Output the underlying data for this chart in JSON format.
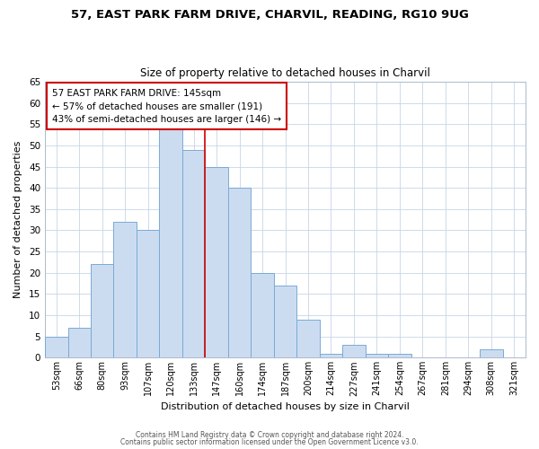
{
  "title": "57, EAST PARK FARM DRIVE, CHARVIL, READING, RG10 9UG",
  "subtitle": "Size of property relative to detached houses in Charvil",
  "xlabel": "Distribution of detached houses by size in Charvil",
  "ylabel": "Number of detached properties",
  "bar_labels": [
    "53sqm",
    "66sqm",
    "80sqm",
    "93sqm",
    "107sqm",
    "120sqm",
    "133sqm",
    "147sqm",
    "160sqm",
    "174sqm",
    "187sqm",
    "200sqm",
    "214sqm",
    "227sqm",
    "241sqm",
    "254sqm",
    "267sqm",
    "281sqm",
    "294sqm",
    "308sqm",
    "321sqm"
  ],
  "bar_values": [
    5,
    7,
    22,
    32,
    30,
    54,
    49,
    45,
    40,
    20,
    17,
    9,
    1,
    3,
    1,
    1,
    0,
    0,
    0,
    2,
    0
  ],
  "bar_color": "#ccdcf0",
  "bar_edge_color": "#7aaad4",
  "vline_index": 7,
  "vline_color": "#cc0000",
  "ylim": [
    0,
    65
  ],
  "yticks": [
    0,
    5,
    10,
    15,
    20,
    25,
    30,
    35,
    40,
    45,
    50,
    55,
    60,
    65
  ],
  "annotation_title": "57 EAST PARK FARM DRIVE: 145sqm",
  "annotation_line1": "← 57% of detached houses are smaller (191)",
  "annotation_line2": "43% of semi-detached houses are larger (146) →",
  "annotation_box_color": "#ffffff",
  "annotation_box_edge": "#cc0000",
  "footer1": "Contains HM Land Registry data © Crown copyright and database right 2024.",
  "footer2": "Contains public sector information licensed under the Open Government Licence v3.0.",
  "background_color": "#ffffff",
  "grid_color": "#c8d4e8"
}
